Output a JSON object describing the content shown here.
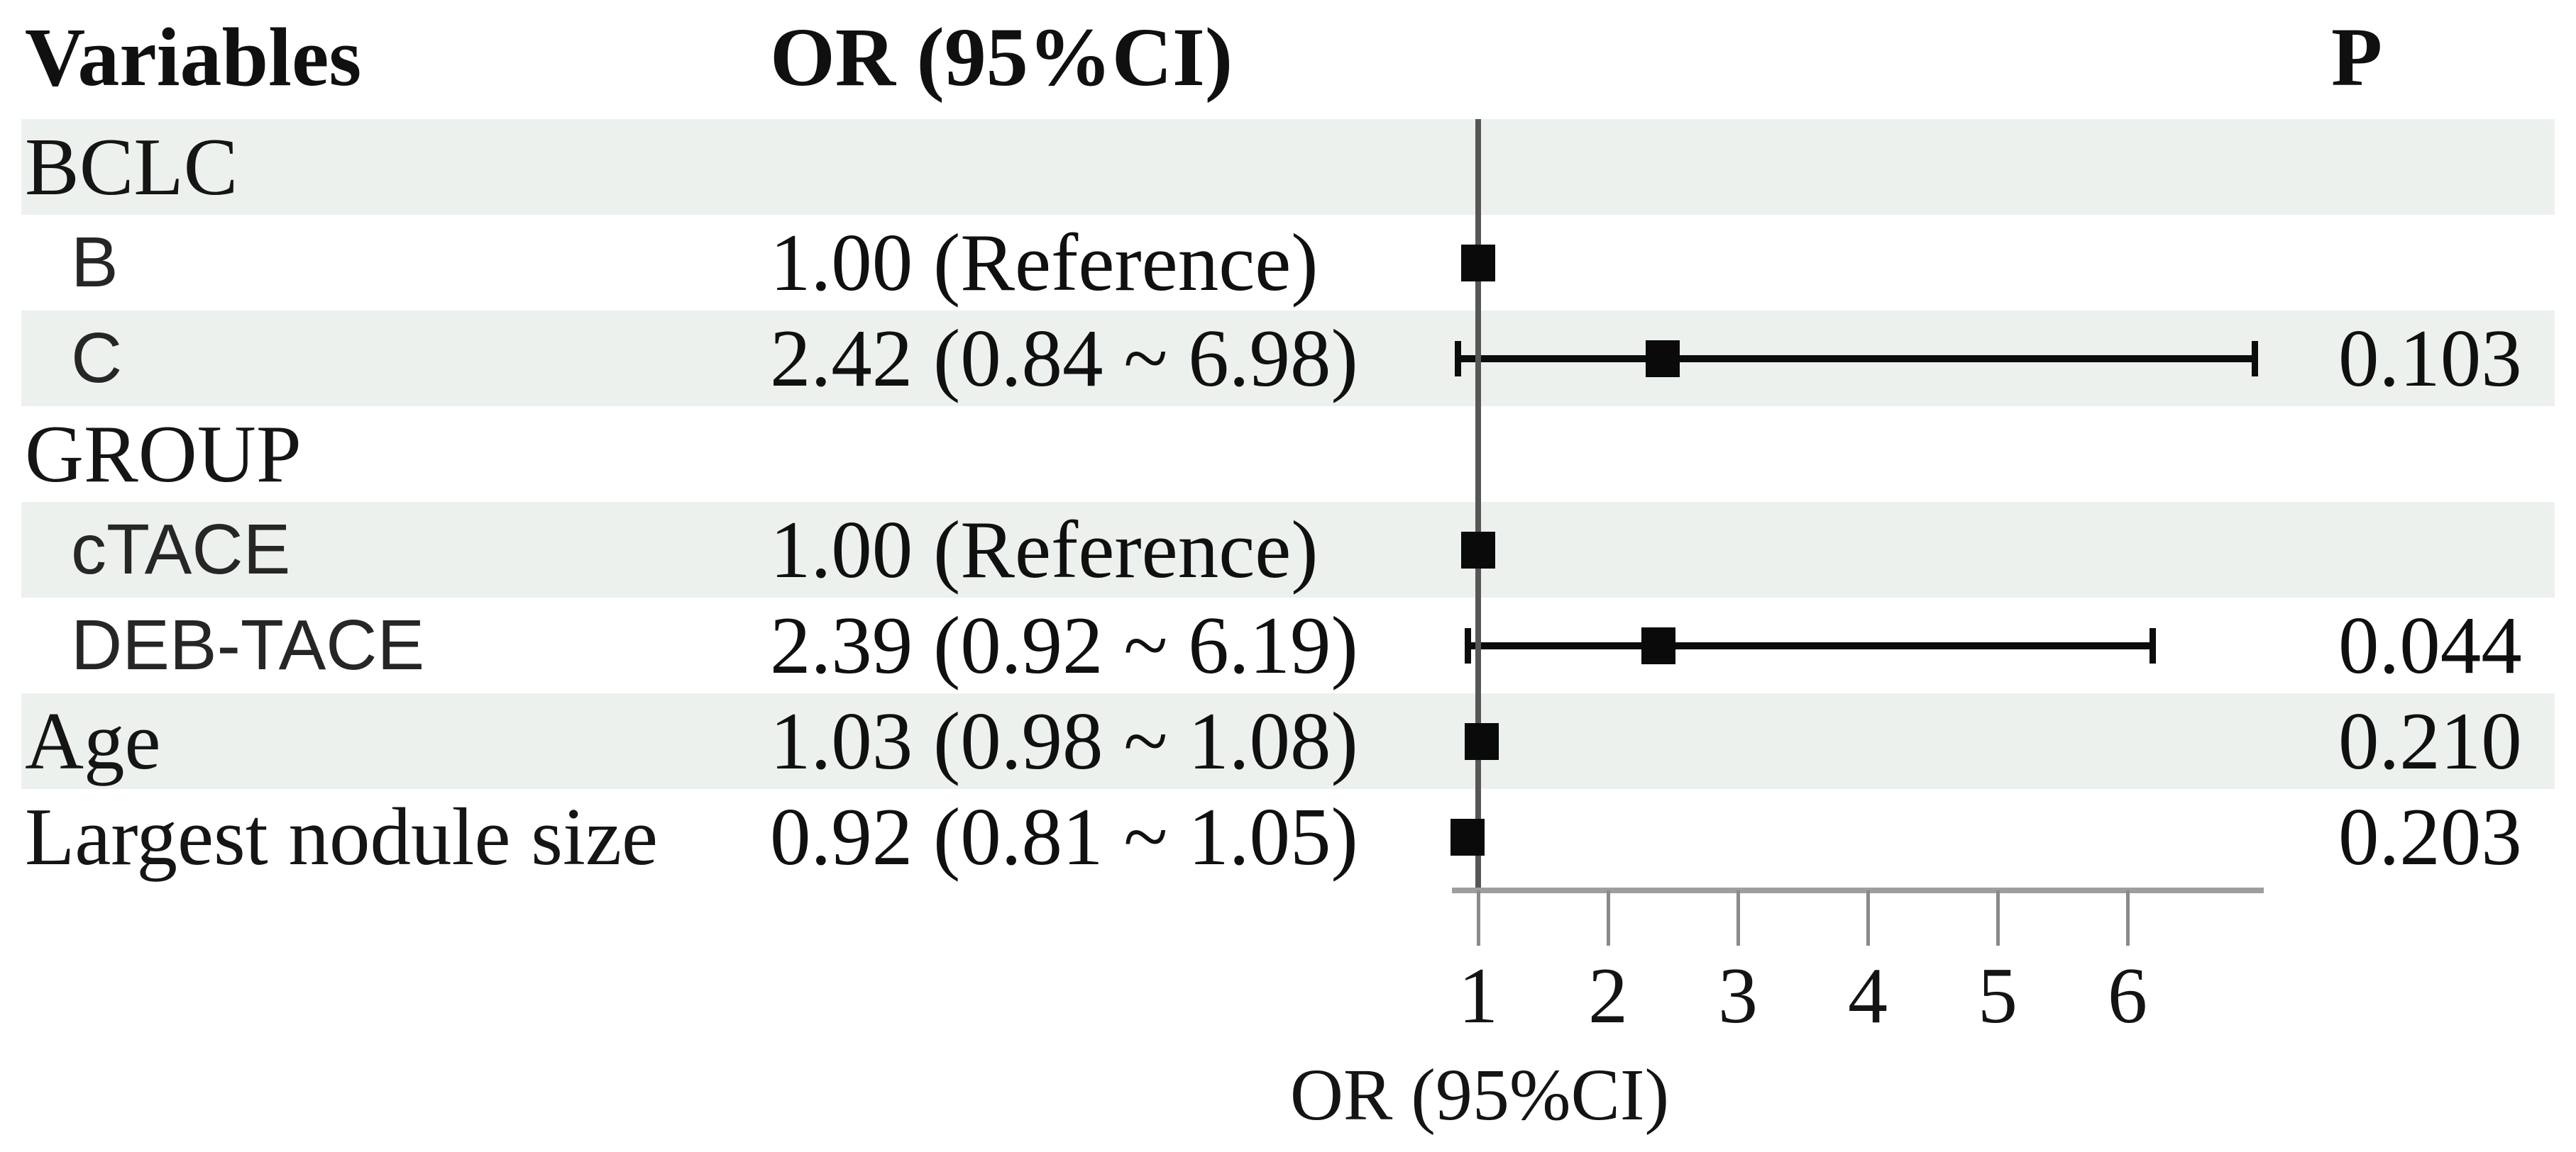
{
  "figure": {
    "header": {
      "variables": "Variables",
      "or_ci": "OR (95%CI)",
      "p": "P"
    }
  },
  "colors": {
    "stripe": "#edf1ee",
    "marker": "#0a0a0a",
    "axis_line": "#9e9e9e",
    "tick": "#8a8a8a",
    "reference_line": "#565656",
    "text": "#101010"
  },
  "chart_data": {
    "type": "forest",
    "title": "",
    "xlabel": "OR (95%CI)",
    "x_ticks": [
      1,
      2,
      3,
      4,
      5,
      6
    ],
    "xlim": [
      0.8,
      7.05
    ],
    "reference_line": 1.0,
    "grid": false,
    "rows": [
      {
        "variable": "BCLC",
        "label_style": "serif",
        "indent": false,
        "shaded": true,
        "or_text": "",
        "or": null,
        "ci_low": null,
        "ci_high": null,
        "p_text": "",
        "p": null
      },
      {
        "variable": "B",
        "label_style": "sans",
        "indent": true,
        "shaded": false,
        "or_text": "1.00 (Reference)",
        "or": 1.0,
        "ci_low": null,
        "ci_high": null,
        "p_text": "",
        "p": null
      },
      {
        "variable": "C",
        "label_style": "sans",
        "indent": true,
        "shaded": true,
        "or_text": "2.42 (0.84 ~ 6.98)",
        "or": 2.42,
        "ci_low": 0.84,
        "ci_high": 6.98,
        "p_text": "0.103",
        "p": 0.103
      },
      {
        "variable": "GROUP",
        "label_style": "serif",
        "indent": false,
        "shaded": false,
        "or_text": "",
        "or": null,
        "ci_low": null,
        "ci_high": null,
        "p_text": "",
        "p": null
      },
      {
        "variable": "cTACE",
        "label_style": "sans",
        "indent": true,
        "shaded": true,
        "or_text": "1.00 (Reference)",
        "or": 1.0,
        "ci_low": null,
        "ci_high": null,
        "p_text": "",
        "p": null
      },
      {
        "variable": "DEB-TACE",
        "label_style": "sans",
        "indent": true,
        "shaded": false,
        "or_text": "2.39 (0.92 ~ 6.19)",
        "or": 2.39,
        "ci_low": 0.92,
        "ci_high": 6.19,
        "p_text": "0.044",
        "p": 0.044
      },
      {
        "variable": "Age",
        "label_style": "serif",
        "indent": false,
        "shaded": true,
        "or_text": "1.03 (0.98 ~ 1.08)",
        "or": 1.03,
        "ci_low": 0.98,
        "ci_high": 1.08,
        "p_text": "0.210",
        "p": 0.21
      },
      {
        "variable": "Largest nodule size",
        "label_style": "serif",
        "indent": false,
        "shaded": false,
        "or_text": "0.92 (0.81 ~ 1.05)",
        "or": 0.92,
        "ci_low": 0.81,
        "ci_high": 1.05,
        "p_text": "0.203",
        "p": 0.203
      }
    ]
  }
}
